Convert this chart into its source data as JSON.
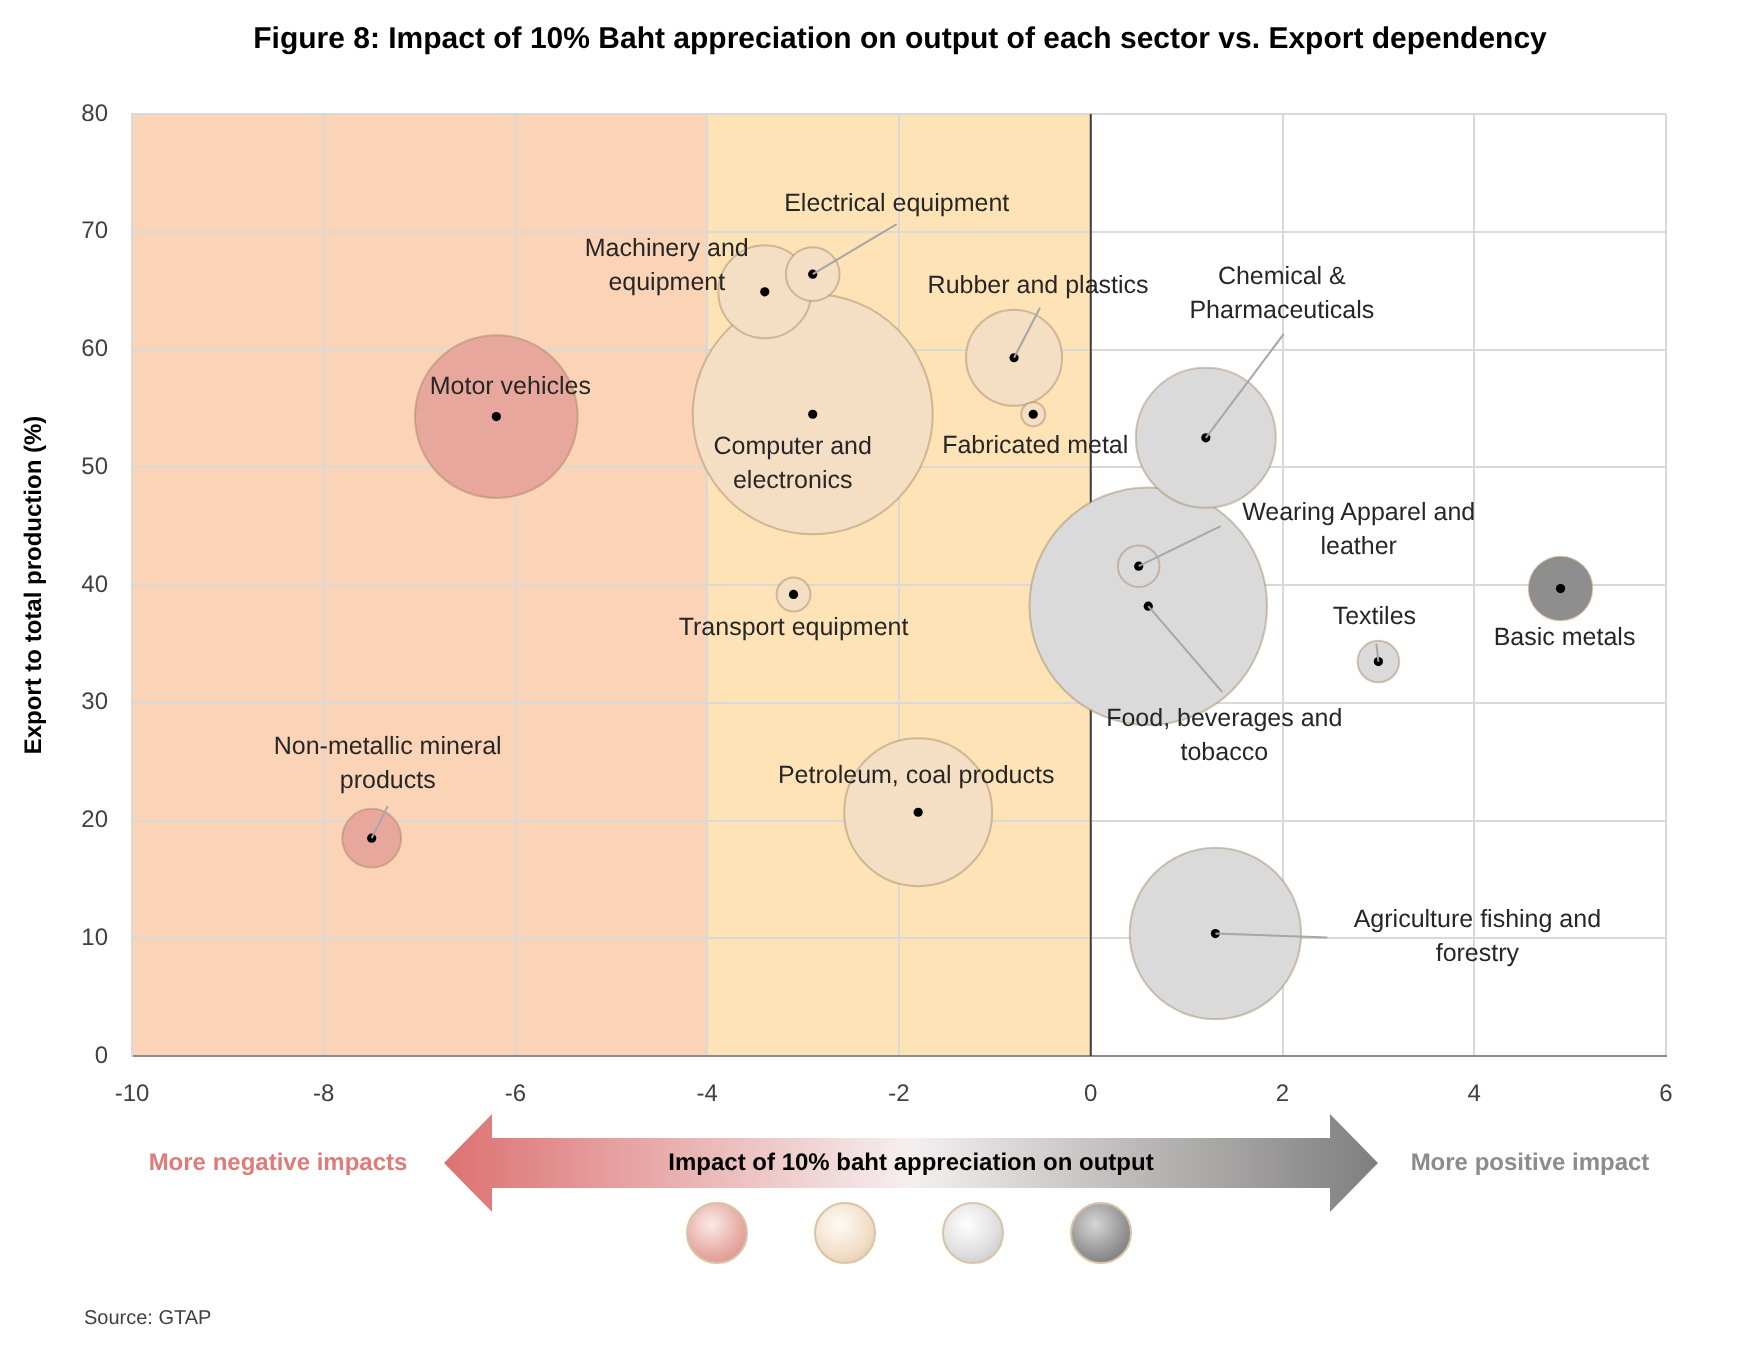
{
  "chart_data": {
    "type": "bubble",
    "title": "Figure 8: Impact of 10% Baht appreciation on output of each sector vs. Export dependency",
    "ylabel": "Export to total production (%)",
    "xlabel": "Impact of 10% baht appreciation on output",
    "x": [
      -2.9,
      0.6,
      1.3,
      -6.2,
      -1.8,
      1.2,
      -0.8,
      -3.4,
      4.9,
      -7.5,
      -2.9,
      0.5,
      3.0,
      -3.1,
      -0.6
    ],
    "values": [
      54.5,
      38.2,
      10.4,
      54.3,
      20.7,
      52.5,
      59.3,
      64.9,
      39.7,
      18.5,
      66.4,
      41.6,
      33.5,
      39.2,
      54.5
    ],
    "sizes": [
      1,
      0.98,
      0.51,
      0.46,
      0.38,
      0.34,
      0.16,
      0.15,
      0.07,
      0.06,
      0.05,
      0.03,
      0.03,
      0.02,
      0.01
    ],
    "colors": [
      "#f4dec4",
      "#dadada",
      "#dadada",
      "#e8a79c",
      "#f4dec4",
      "#dadada",
      "#f4dec4",
      "#f4dec4",
      "#8e8e8e",
      "#e8a79c",
      "#f4dec4",
      "#dadada",
      "#dadada",
      "#f4dec4",
      "#f4dec4"
    ],
    "xlim": [
      -10,
      6
    ],
    "xticks": [
      -10,
      -8,
      -6,
      -4,
      -2,
      0,
      2,
      4,
      6
    ],
    "ylim": [
      0,
      80
    ],
    "yticks": [
      0,
      10,
      20,
      30,
      40,
      50,
      60,
      70,
      80
    ],
    "grid": true,
    "bands": [
      {
        "axis": "x",
        "from": -10,
        "to": -4,
        "color": "#fbd3b7"
      },
      {
        "axis": "x",
        "from": -4,
        "to": 0,
        "color": "#fee3b6"
      }
    ],
    "ref_lines": [
      {
        "axis": "x",
        "value": 0,
        "color": "#404040"
      }
    ],
    "annotations": [
      {
        "text": "Computer and electronics",
        "x": -2.9,
        "y": 54.5
      },
      {
        "text": "Food, beverages and tobacco",
        "x": 0.6,
        "y": 38.2
      },
      {
        "text": "Agriculture fishing and forestry",
        "x": 1.3,
        "y": 10.4
      },
      {
        "text": "Motor vehicles",
        "x": -6.2,
        "y": 54.3
      },
      {
        "text": "Petroleum, coal products",
        "x": -1.8,
        "y": 20.7
      },
      {
        "text": "Chemical & Pharmaceuticals",
        "x": 1.2,
        "y": 52.5
      },
      {
        "text": "Rubber and plastics",
        "x": -0.8,
        "y": 59.3
      },
      {
        "text": "Machinery and equipment",
        "x": -3.4,
        "y": 64.9
      },
      {
        "text": "Basic metals",
        "x": 4.9,
        "y": 39.7
      },
      {
        "text": "Non-metallic mineral products",
        "x": -7.5,
        "y": 18.5
      },
      {
        "text": "Electrical equipment",
        "x": -2.9,
        "y": 66.4
      },
      {
        "text": "Wearing Apparel and leather",
        "x": 0.5,
        "y": 41.6
      },
      {
        "text": "Textiles",
        "x": 3.0,
        "y": 33.5
      },
      {
        "text": "Transport equipment",
        "x": -3.1,
        "y": 39.2
      },
      {
        "text": "Fabricated metal",
        "x": -0.6,
        "y": 54.5
      },
      "More negative impacts",
      "More positive impact",
      "Source: GTAP"
    ]
  }
}
